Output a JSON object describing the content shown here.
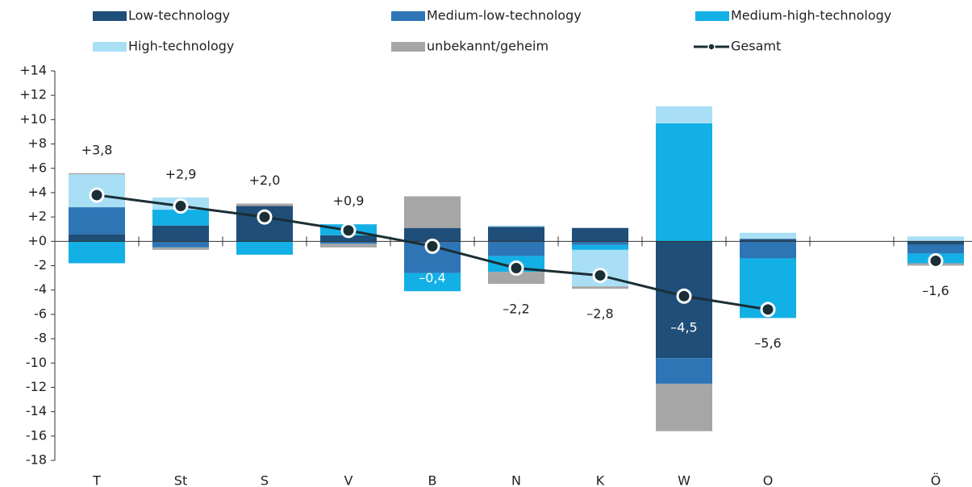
{
  "chart_data": {
    "type": "bar",
    "stacked": true,
    "categories": [
      "T",
      "St",
      "S",
      "V",
      "B",
      "N",
      "K",
      "W",
      "O",
      null,
      "Ö"
    ],
    "series": [
      {
        "name": "Low-technology",
        "color": "#1f4e79",
        "values": [
          0.6,
          1.3,
          2.9,
          0.5,
          1.1,
          1.2,
          1.1,
          -9.6,
          0.2,
          null,
          -0.3
        ]
      },
      {
        "name": "Medium-low-technology",
        "color": "#2e75b6",
        "values": [
          2.2,
          -0.5,
          null,
          -0.2,
          -2.6,
          -1.2,
          -0.3,
          -2.1,
          -1.4,
          null,
          -0.7
        ]
      },
      {
        "name": "Medium-high-technology",
        "color": "#13b0e6",
        "values": [
          -1.8,
          1.3,
          -1.1,
          0.9,
          -1.5,
          -1.3,
          -0.4,
          9.7,
          -4.9,
          null,
          -0.8
        ]
      },
      {
        "name": "High-technology",
        "color": "#a8dff5",
        "values": [
          2.7,
          1.0,
          null,
          null,
          null,
          0.1,
          -3.0,
          1.4,
          0.5,
          null,
          0.4
        ]
      },
      {
        "name": "unbekannt/geheim",
        "color": "#a6a6a6",
        "values": [
          0.1,
          -0.2,
          0.2,
          -0.3,
          2.6,
          -1.0,
          -0.2,
          -3.9,
          null,
          null,
          -0.2
        ]
      },
      {
        "name": "Gesamt",
        "type": "line",
        "color": "#1a2e35",
        "values": [
          3.8,
          2.9,
          2.0,
          0.9,
          -0.4,
          -2.2,
          -2.8,
          -4.5,
          -5.6,
          null,
          -1.6
        ],
        "value_labels": [
          "+3,8",
          "+2,9",
          "+2,0",
          "+0,9",
          "–0,4",
          "–2,2",
          "–2,8",
          "–4,5",
          "–5,6",
          null,
          "–1,6"
        ]
      }
    ],
    "ylim": [
      -18,
      14
    ],
    "yticks": [
      {
        "value": -18,
        "label": "-18"
      },
      {
        "value": -16,
        "label": "-16"
      },
      {
        "value": -14,
        "label": "-14"
      },
      {
        "value": -12,
        "label": "-12"
      },
      {
        "value": -10,
        "label": "-10"
      },
      {
        "value": -8,
        "label": "-8"
      },
      {
        "value": -6,
        "label": "-6"
      },
      {
        "value": -4,
        "label": "-4"
      },
      {
        "value": -2,
        "label": "-2"
      },
      {
        "value": 0,
        "label": "+0"
      },
      {
        "value": 2,
        "label": "+2"
      },
      {
        "value": 4,
        "label": "+4"
      },
      {
        "value": 6,
        "label": "+6"
      },
      {
        "value": 8,
        "label": "+8"
      },
      {
        "value": 10,
        "label": "+10"
      },
      {
        "value": 12,
        "label": "+12"
      },
      {
        "value": 14,
        "label": "+14"
      }
    ],
    "grid": false,
    "legend": "top"
  }
}
